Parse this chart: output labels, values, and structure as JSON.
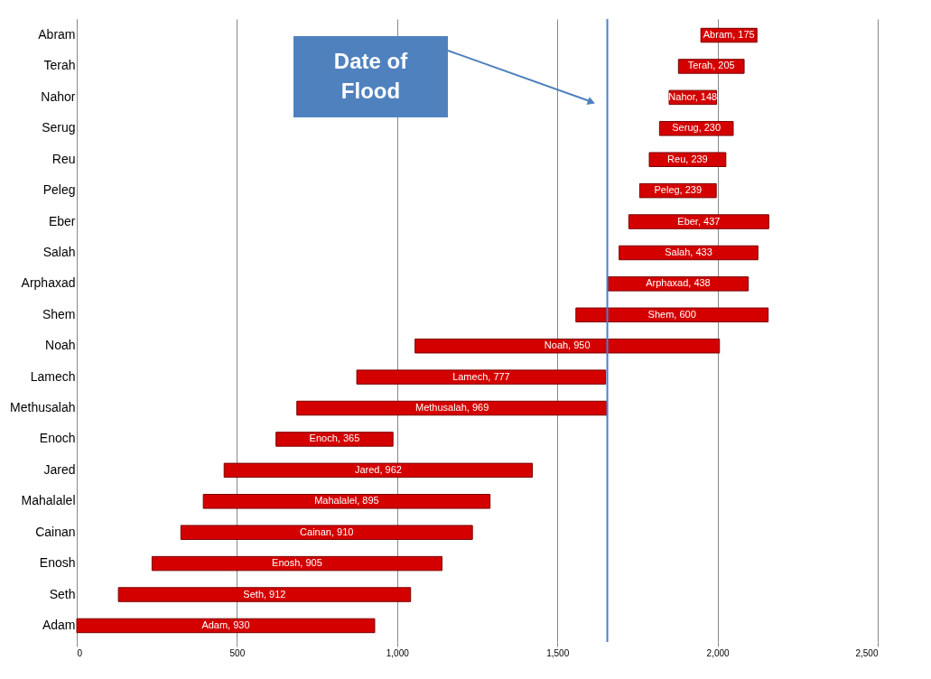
{
  "chart_data": {
    "type": "bar",
    "orientation": "horizontal",
    "categories": [
      "Abram",
      "Terah",
      "Nahor",
      "Serug",
      "Reu",
      "Peleg",
      "Eber",
      "Salah",
      "Arphaxad",
      "Shem",
      "Noah",
      "Lamech",
      "Methusalah",
      "Enoch",
      "Jared",
      "Mahalalel",
      "Cainan",
      "Enosh",
      "Seth",
      "Adam"
    ],
    "base": [
      1948,
      1878,
      1849,
      1819,
      1787,
      1757,
      1723,
      1693,
      1658,
      1558,
      1056,
      874,
      687,
      622,
      460,
      395,
      325,
      235,
      130,
      0
    ],
    "values": [
      175,
      205,
      148,
      230,
      239,
      239,
      437,
      433,
      438,
      600,
      950,
      777,
      969,
      365,
      962,
      895,
      910,
      905,
      912,
      930
    ],
    "value_labels": [
      "Abram, 175",
      "Terah, 205",
      "Nahor, 148",
      "Serug, 230",
      "Reu, 239",
      "Peleg, 239",
      "Eber, 437",
      "Salah, 433",
      "Arphaxad, 438",
      "Shem, 600",
      "Noah, 950",
      "Lamech, 777",
      "Methusalah, 969",
      "Enoch, 365",
      "Jared, 962",
      "Mahalalel, 895",
      "Cainan, 910",
      "Enosh, 905",
      "Seth, 912",
      "Adam, 930"
    ],
    "color": "#d40000",
    "xlim": [
      0,
      2500
    ],
    "xticks": [
      0,
      500,
      {
        "value": 1000,
        "label": "1,000"
      },
      {
        "value": 1500,
        "label": "1,500"
      },
      {
        "value": 2000,
        "label": "2,000"
      },
      {
        "value": 2500,
        "label": "2,500"
      }
    ],
    "grid": "x",
    "legend": false,
    "annotations": [
      "Date of Flood"
    ],
    "ref_lines": [
      {
        "axis": "x",
        "value": 1656,
        "color": "#4a7fd4"
      }
    ]
  }
}
